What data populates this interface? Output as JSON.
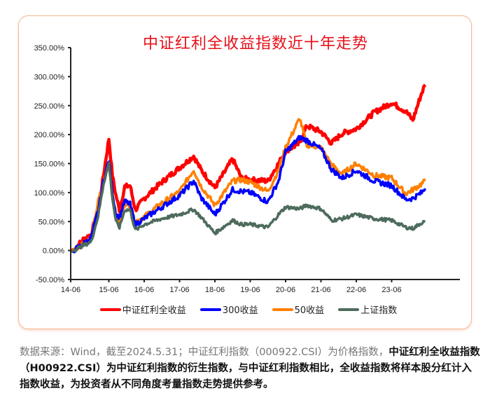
{
  "chart_data": {
    "type": "line",
    "title": "中证红利全收益指数近十年走势",
    "xlabel": "",
    "ylabel": "",
    "ylim": [
      -50,
      350
    ],
    "y_ticks": [
      "350.00%",
      "300.00%",
      "250.00%",
      "200.00%",
      "150.00%",
      "100.00%",
      "50.00%",
      "0.00%",
      "-50.00%"
    ],
    "x_ticks": [
      "14-06",
      "15-06",
      "16-06",
      "17-06",
      "18-06",
      "19-06",
      "20-06",
      "21-06",
      "22-06",
      "23-06"
    ],
    "grid": false,
    "legend_position": "bottom",
    "x": [
      0,
      0.25,
      0.5,
      0.7,
      0.85,
      1.0,
      1.1,
      1.2,
      1.3,
      1.45,
      1.6,
      1.75,
      2.0,
      2.5,
      3.0,
      3.4,
      3.6,
      4.0,
      4.5,
      4.75,
      5.0,
      5.5,
      5.8,
      6.0,
      6.4,
      6.6,
      7.0,
      7.3,
      7.6,
      8.0,
      8.5,
      9.0,
      9.4,
      9.6,
      9.85,
      9.95
    ],
    "series": [
      {
        "name": "中证红利全收益",
        "color": "#ff0000",
        "values": [
          0,
          18,
          28,
          72,
          130,
          193,
          130,
          95,
          70,
          110,
          112,
          70,
          90,
          118,
          143,
          163,
          140,
          108,
          158,
          125,
          122,
          120,
          150,
          172,
          185,
          215,
          205,
          185,
          202,
          210,
          238,
          255,
          240,
          225,
          272,
          286
        ]
      },
      {
        "name": "300收益",
        "color": "#0000ff",
        "values": [
          0,
          10,
          22,
          70,
          120,
          156,
          100,
          62,
          58,
          85,
          80,
          45,
          55,
          75,
          95,
          120,
          92,
          62,
          105,
          102,
          100,
          84,
          120,
          170,
          195,
          190,
          175,
          140,
          125,
          138,
          120,
          112,
          88,
          90,
          100,
          107
        ]
      },
      {
        "name": "50收益",
        "color": "#ff8000",
        "values": [
          0,
          12,
          20,
          85,
          118,
          150,
          100,
          60,
          48,
          82,
          78,
          50,
          58,
          82,
          102,
          139,
          112,
          78,
          120,
          122,
          118,
          102,
          138,
          178,
          228,
          182,
          178,
          148,
          132,
          150,
          130,
          125,
          98,
          105,
          115,
          120
        ]
      },
      {
        "name": "上证指数",
        "color": "#4d6b5c",
        "values": [
          0,
          8,
          15,
          60,
          115,
          151,
          90,
          50,
          40,
          70,
          70,
          35,
          45,
          55,
          62,
          71,
          58,
          30,
          52,
          45,
          45,
          40,
          62,
          75,
          72,
          78,
          72,
          52,
          55,
          62,
          55,
          52,
          40,
          38,
          48,
          50
        ]
      }
    ]
  },
  "legend": {
    "items": [
      {
        "label": "中证红利全收益",
        "color": "#ff0000"
      },
      {
        "label": "300收益",
        "color": "#0000ff"
      },
      {
        "label": "50收益",
        "color": "#ff8000"
      },
      {
        "label": "上证指数",
        "color": "#4d6b5c"
      }
    ]
  },
  "footer": {
    "source": "数据来源：Wind，截至2024.5.31；中证红利指数（000922.CSI）为价格指数，",
    "bold_lead": "中证",
    "body": "红利全收益指数（H00922.CSI）为中证红利指数的衍生指数，与中证红利指数相比，全收益指数将样本股分红计入指数收益，为投资者从不同角度考量指数走势提供参考。"
  }
}
